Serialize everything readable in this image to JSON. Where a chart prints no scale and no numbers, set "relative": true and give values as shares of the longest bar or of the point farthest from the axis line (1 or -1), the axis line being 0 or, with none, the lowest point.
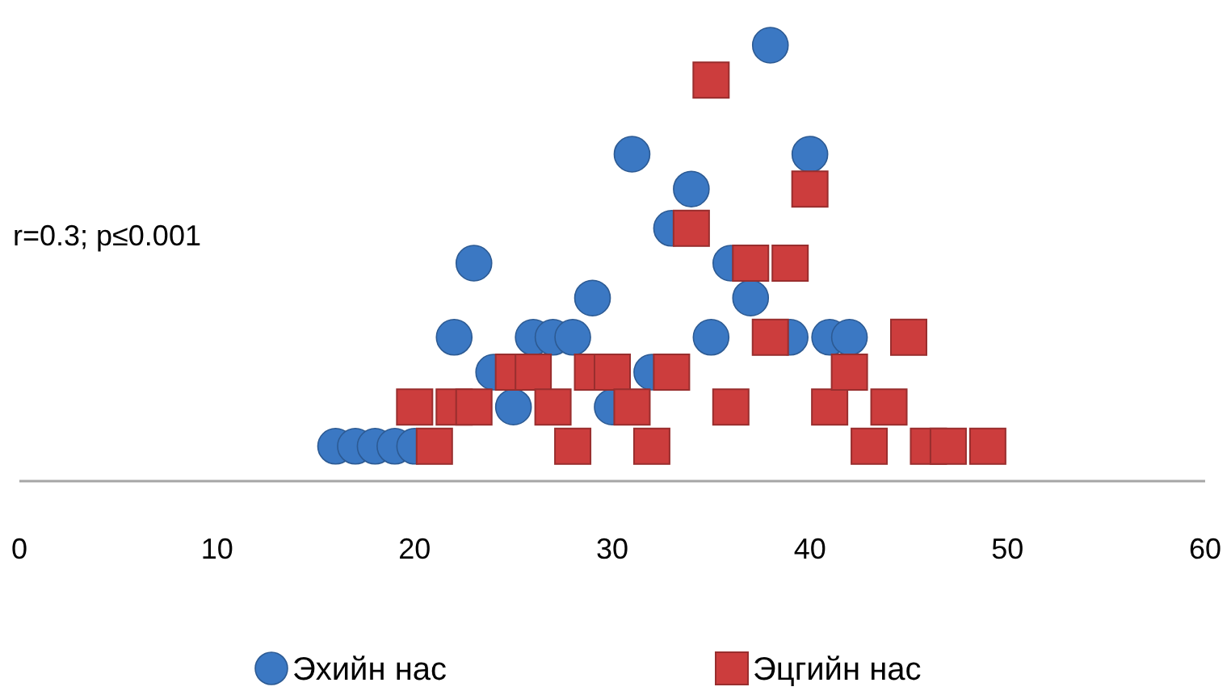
{
  "chart_data": {
    "type": "scatter",
    "relative": true,
    "xlim": [
      0,
      60
    ],
    "xticks": [
      0,
      10,
      20,
      30,
      40,
      50,
      60
    ],
    "tick_labels": "x",
    "grid": false,
    "legend": "bottom",
    "annotations": [
      "r=0.3; p≤0.001"
    ],
    "series": [
      {
        "name": "Эхийн нас",
        "color": "#3b78c3",
        "marker": "circle",
        "x": [
          16,
          17,
          18,
          19,
          20,
          21,
          22,
          23,
          24,
          25,
          26,
          27,
          28,
          29,
          30,
          31,
          32,
          33,
          34,
          35,
          36,
          37,
          38,
          39,
          40,
          41,
          42
        ],
        "values": [
          0.08,
          0.08,
          0.08,
          0.08,
          0.08,
          null,
          0.33,
          0.5,
          0.25,
          0.17,
          0.33,
          0.33,
          0.33,
          0.42,
          0.17,
          0.75,
          0.25,
          0.58,
          0.67,
          0.33,
          0.5,
          0.42,
          1,
          0.33,
          0.75,
          0.33,
          0.33
        ]
      },
      {
        "name": "Эцгийн нас",
        "color": "#cc3d3d",
        "marker": "square",
        "x": [
          20,
          21,
          22,
          23,
          25,
          26,
          27,
          28,
          29,
          30,
          31,
          32,
          33,
          34,
          35,
          36,
          37,
          38,
          39,
          40,
          41,
          42,
          43,
          44,
          45,
          46,
          47,
          49
        ],
        "values": [
          0.17,
          0.08,
          0.17,
          0.17,
          0.25,
          0.25,
          0.17,
          0.08,
          0.25,
          0.25,
          0.17,
          0.08,
          0.25,
          0.58,
          0.92,
          0.17,
          0.5,
          0.33,
          0.5,
          0.67,
          0.17,
          0.25,
          0.08,
          0.17,
          0.33,
          0.08,
          0.08,
          0.08
        ]
      }
    ]
  }
}
